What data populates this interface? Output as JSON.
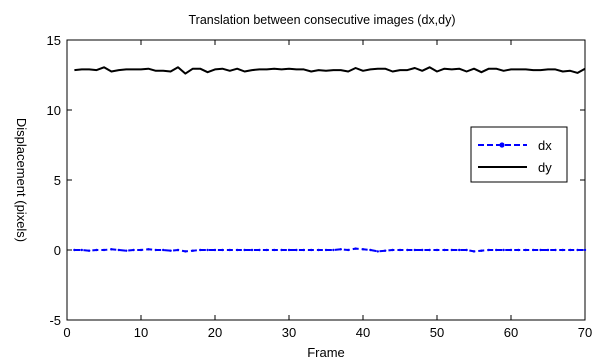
{
  "chart_data": {
    "type": "line",
    "title": "Translation between consecutive images (dx,dy)",
    "xlabel": "Frame",
    "ylabel": "Displacement (pixels)",
    "xlim": [
      0,
      70
    ],
    "ylim": [
      -5,
      15
    ],
    "xticks": [
      0,
      10,
      20,
      30,
      40,
      50,
      60,
      70
    ],
    "yticks": [
      -5,
      0,
      5,
      10,
      15
    ],
    "grid": false,
    "legend_position": "right",
    "x": [
      1,
      2,
      3,
      4,
      5,
      6,
      7,
      8,
      9,
      10,
      11,
      12,
      13,
      14,
      15,
      16,
      17,
      18,
      19,
      20,
      21,
      22,
      23,
      24,
      25,
      26,
      27,
      28,
      29,
      30,
      31,
      32,
      33,
      34,
      35,
      36,
      37,
      38,
      39,
      40,
      41,
      42,
      43,
      44,
      45,
      46,
      47,
      48,
      49,
      50,
      51,
      52,
      53,
      54,
      55,
      56,
      57,
      58,
      59,
      60,
      61,
      62,
      63,
      64,
      65,
      66,
      67,
      68,
      69,
      70
    ],
    "series": [
      {
        "name": "dx",
        "color": "#0000ff",
        "style": "dashed-dot-markers",
        "values": [
          0.0,
          0.0,
          -0.05,
          0.0,
          0.0,
          0.05,
          0.0,
          -0.05,
          0.0,
          0.0,
          0.05,
          0.0,
          0.0,
          -0.05,
          0.0,
          -0.1,
          -0.05,
          0.0,
          0.0,
          0.0,
          0.0,
          0.0,
          0.0,
          0.0,
          0.0,
          0.0,
          0.0,
          0.0,
          0.0,
          0.0,
          0.0,
          0.0,
          0.0,
          0.0,
          0.0,
          0.0,
          0.05,
          0.0,
          0.1,
          0.05,
          0.0,
          -0.1,
          -0.05,
          0.0,
          0.0,
          0.0,
          0.0,
          0.0,
          0.0,
          0.0,
          0.0,
          0.0,
          0.0,
          0.0,
          -0.1,
          -0.05,
          0.0,
          0.0,
          0.0,
          0.0,
          0.0,
          0.0,
          0.0,
          0.0,
          0.0,
          0.0,
          0.0,
          0.0,
          0.0,
          0.0
        ]
      },
      {
        "name": "dy",
        "color": "#000000",
        "style": "solid",
        "values": [
          12.85,
          12.9,
          12.9,
          12.85,
          13.05,
          12.75,
          12.85,
          12.9,
          12.9,
          12.9,
          12.95,
          12.8,
          12.8,
          12.75,
          13.05,
          12.6,
          12.95,
          12.95,
          12.7,
          12.9,
          12.95,
          12.8,
          12.95,
          12.75,
          12.85,
          12.9,
          12.9,
          12.95,
          12.9,
          12.95,
          12.9,
          12.9,
          12.75,
          12.85,
          12.8,
          12.85,
          12.85,
          12.75,
          13.0,
          12.8,
          12.9,
          12.95,
          12.95,
          12.75,
          12.85,
          12.85,
          13.0,
          12.8,
          13.05,
          12.75,
          12.95,
          12.9,
          12.95,
          12.75,
          12.95,
          12.7,
          12.95,
          12.95,
          12.8,
          12.9,
          12.9,
          12.9,
          12.85,
          12.85,
          12.9,
          12.9,
          12.75,
          12.8,
          12.65,
          12.95
        ]
      }
    ]
  }
}
